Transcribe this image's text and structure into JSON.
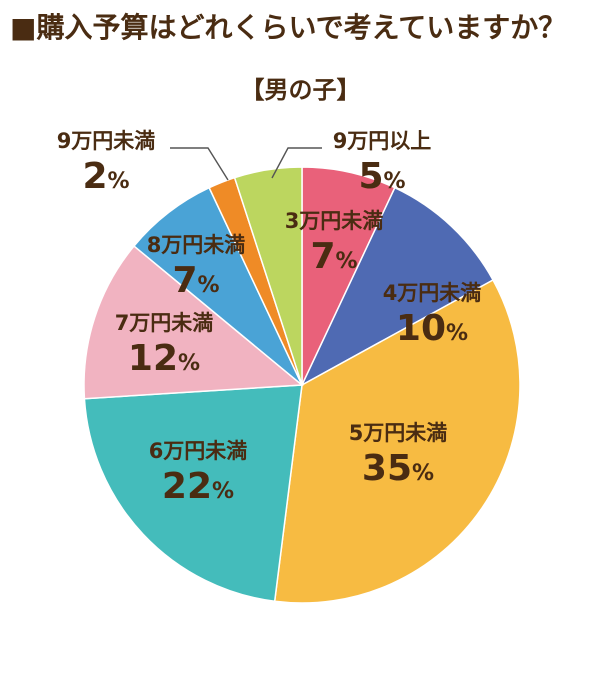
{
  "title": "■購入予算はどれくらいで考えていますか？",
  "subtitle": "【男の子】",
  "colors": {
    "text": "#4a2c12",
    "leader": "#555555",
    "slice_border": "#ffffff"
  },
  "chart_data": {
    "type": "pie",
    "title": "■購入予算はどれくらいで考えていますか？",
    "subtitle": "【男の子】",
    "unit": "%",
    "start": "12 o'clock",
    "direction": "clockwise",
    "slices": [
      {
        "label": "3万円未満",
        "value": 7,
        "display": "7",
        "color": "#e9617a"
      },
      {
        "label": "4万円未満",
        "value": 10,
        "display": "10",
        "color": "#4f6ab3"
      },
      {
        "label": "5万円未満",
        "value": 35,
        "display": "35",
        "color": "#f7bb42"
      },
      {
        "label": "6万円未満",
        "value": 22,
        "display": "22",
        "color": "#44bcbb"
      },
      {
        "label": "7万円未満",
        "value": 12,
        "display": "12",
        "color": "#f1b3c1"
      },
      {
        "label": "8万円未満",
        "value": 7,
        "display": "7",
        "color": "#4aa3d6"
      },
      {
        "label": "9万円未満",
        "value": 2,
        "display": "2",
        "color": "#ef8b26"
      },
      {
        "label": "9万円以上",
        "value": 5,
        "display": "5",
        "color": "#bcd65f"
      }
    ]
  }
}
